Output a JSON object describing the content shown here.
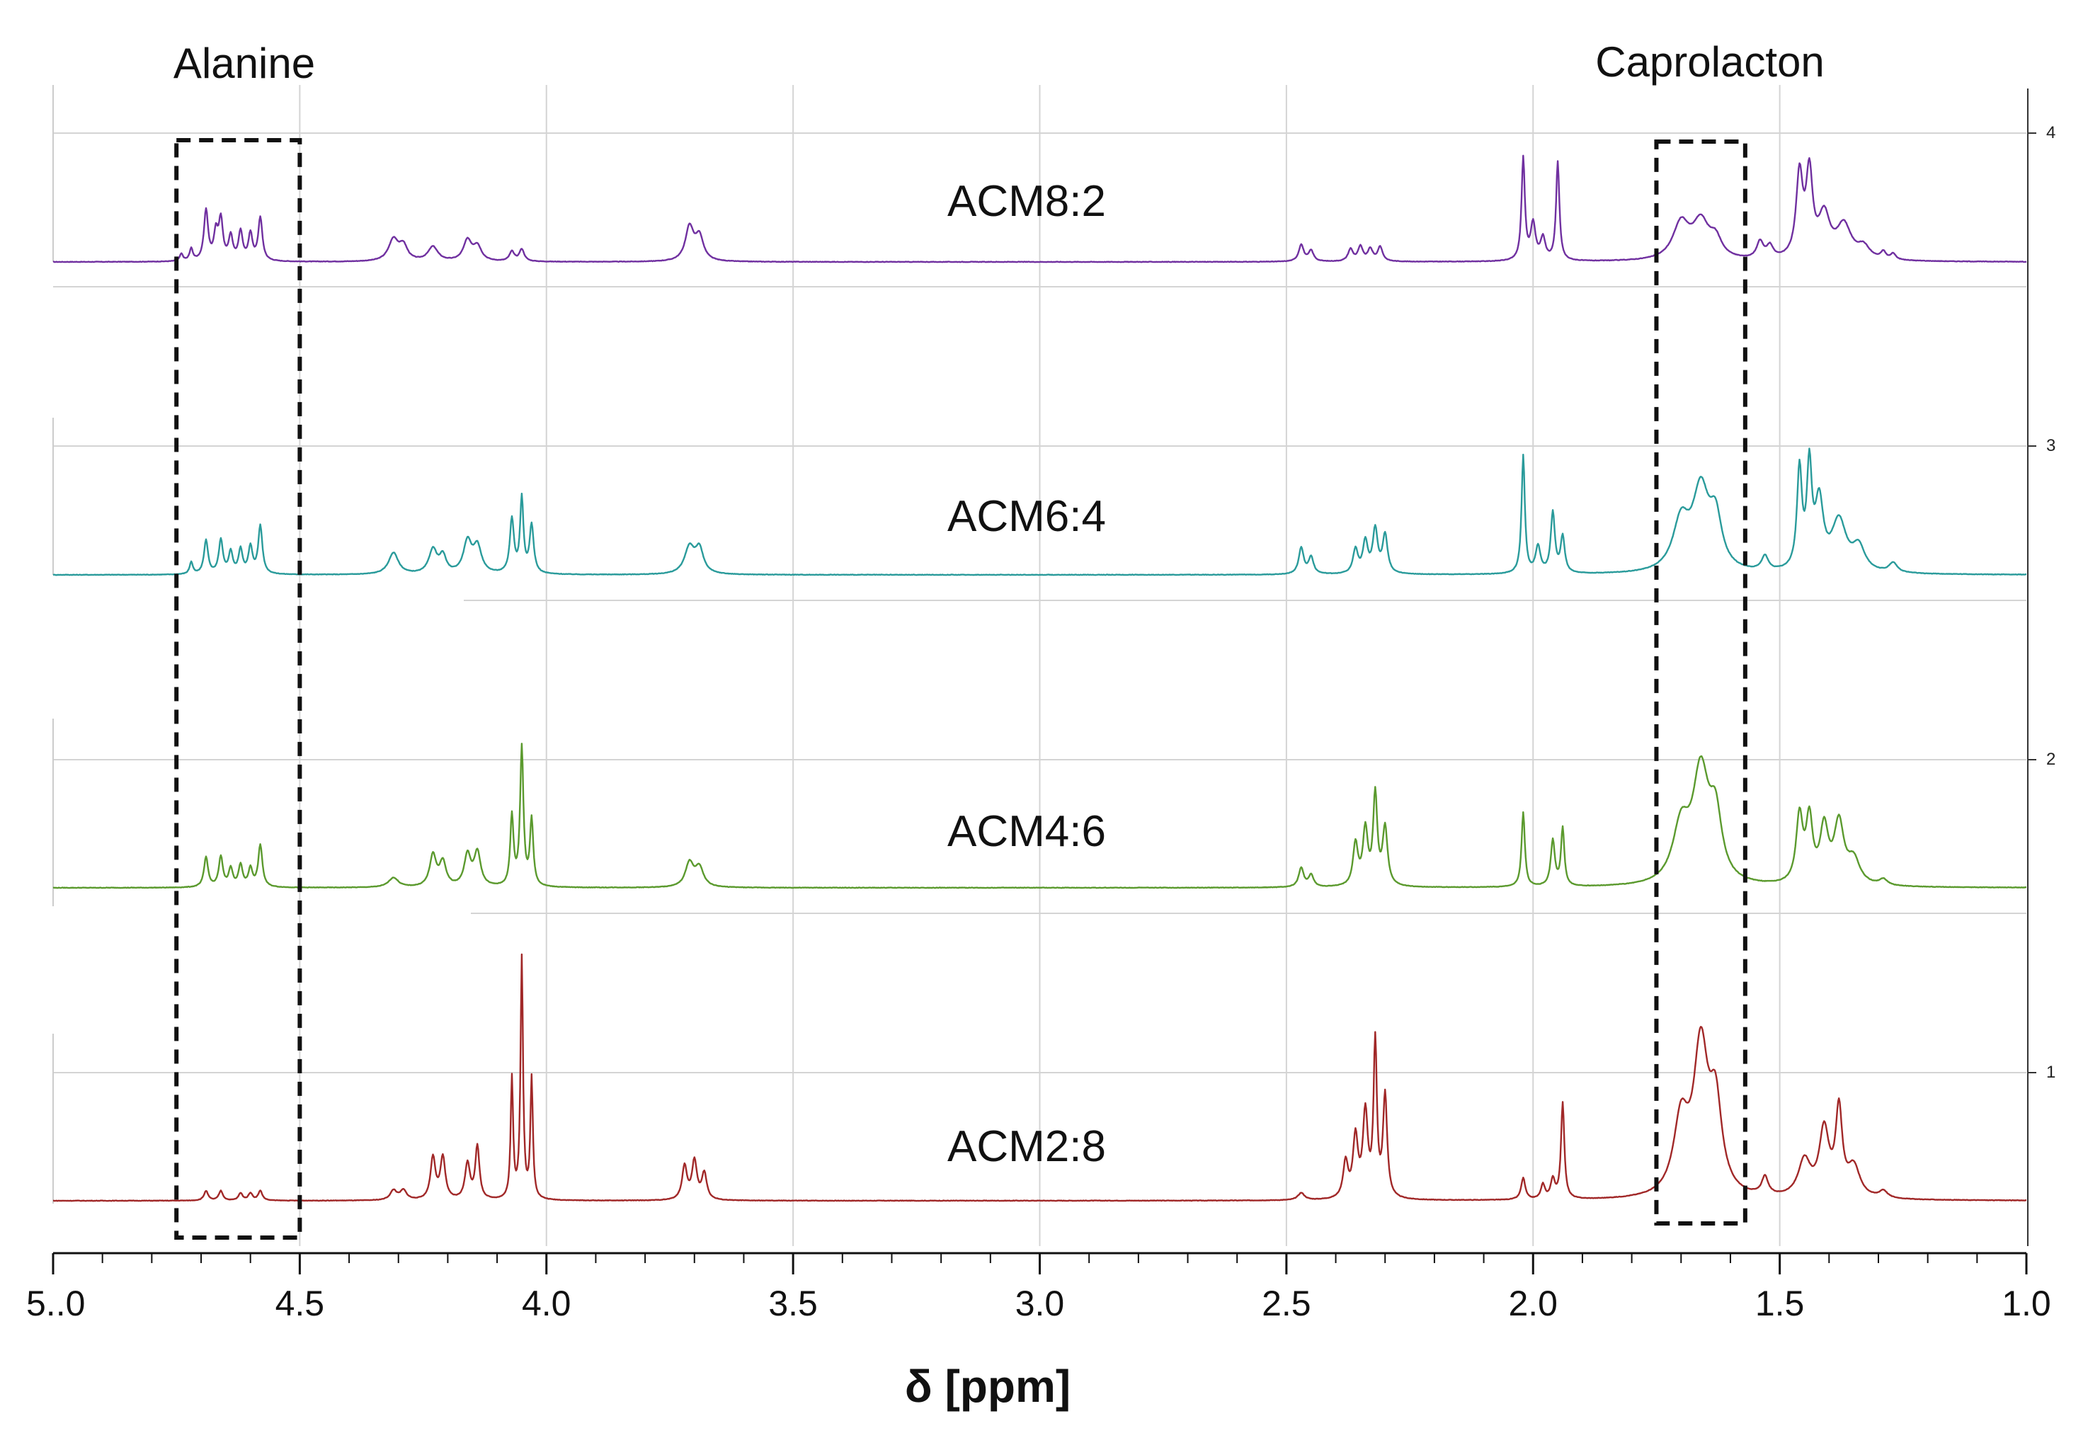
{
  "chart_data": {
    "type": "line",
    "title": "",
    "xlabel": "δ [ppm]",
    "ylabel": "",
    "x_reversed": true,
    "xlim": [
      5.0,
      1.0
    ],
    "x_ticks": [
      {
        "value": 5.0,
        "label": "5..0"
      },
      {
        "value": 4.5,
        "label": "4.5"
      },
      {
        "value": 4.0,
        "label": "4.0"
      },
      {
        "value": 3.5,
        "label": "3.5"
      },
      {
        "value": 3.0,
        "label": "3.0"
      },
      {
        "value": 2.5,
        "label": "2.5"
      },
      {
        "value": 2.0,
        "label": "2.0"
      },
      {
        "value": 1.5,
        "label": "1.5"
      },
      {
        "value": 1.0,
        "label": "1.0"
      }
    ],
    "stack_ticks": [
      {
        "value": 4,
        "label": "4"
      },
      {
        "value": 3,
        "label": "3"
      },
      {
        "value": 2,
        "label": "2"
      },
      {
        "value": 1,
        "label": "1"
      }
    ],
    "grid": true,
    "annotations": [
      {
        "label": "Alanine",
        "x_from": 4.75,
        "x_to": 4.5
      },
      {
        "label": "Caprolacton",
        "x_from": 1.75,
        "x_to": 1.57
      }
    ],
    "series": [
      {
        "name": "ACM8:2",
        "color": "#7030a0",
        "stack": 4,
        "peaks": [
          [
            4.74,
            0.06,
            0.004
          ],
          [
            4.72,
            0.1,
            0.004
          ],
          [
            4.69,
            0.42,
            0.005
          ],
          [
            4.67,
            0.22,
            0.005
          ],
          [
            4.66,
            0.33,
            0.005
          ],
          [
            4.64,
            0.2,
            0.005
          ],
          [
            4.62,
            0.24,
            0.005
          ],
          [
            4.6,
            0.22,
            0.005
          ],
          [
            4.58,
            0.36,
            0.005
          ],
          [
            4.31,
            0.18,
            0.012
          ],
          [
            4.29,
            0.12,
            0.01
          ],
          [
            4.23,
            0.12,
            0.012
          ],
          [
            4.16,
            0.17,
            0.01
          ],
          [
            4.14,
            0.12,
            0.01
          ],
          [
            4.07,
            0.08,
            0.006
          ],
          [
            4.05,
            0.1,
            0.006
          ],
          [
            3.71,
            0.28,
            0.01
          ],
          [
            3.69,
            0.2,
            0.01
          ],
          [
            2.47,
            0.14,
            0.006
          ],
          [
            2.45,
            0.09,
            0.006
          ],
          [
            2.37,
            0.1,
            0.006
          ],
          [
            2.35,
            0.12,
            0.006
          ],
          [
            2.33,
            0.1,
            0.006
          ],
          [
            2.31,
            0.12,
            0.006
          ],
          [
            2.02,
            0.85,
            0.004
          ],
          [
            2.0,
            0.3,
            0.006
          ],
          [
            1.98,
            0.18,
            0.006
          ],
          [
            1.95,
            0.82,
            0.004
          ],
          [
            1.7,
            0.3,
            0.02
          ],
          [
            1.66,
            0.3,
            0.02
          ],
          [
            1.63,
            0.15,
            0.015
          ],
          [
            1.54,
            0.14,
            0.008
          ],
          [
            1.52,
            0.1,
            0.008
          ],
          [
            1.46,
            0.68,
            0.008
          ],
          [
            1.44,
            0.68,
            0.008
          ],
          [
            1.41,
            0.35,
            0.014
          ],
          [
            1.37,
            0.28,
            0.018
          ],
          [
            1.33,
            0.1,
            0.015
          ],
          [
            1.29,
            0.06,
            0.006
          ],
          [
            1.27,
            0.05,
            0.006
          ]
        ]
      },
      {
        "name": "ACM6:4",
        "color": "#2a9b9b",
        "stack": 3,
        "peaks": [
          [
            4.72,
            0.1,
            0.004
          ],
          [
            4.69,
            0.28,
            0.005
          ],
          [
            4.66,
            0.28,
            0.005
          ],
          [
            4.64,
            0.18,
            0.005
          ],
          [
            4.62,
            0.2,
            0.005
          ],
          [
            4.6,
            0.22,
            0.005
          ],
          [
            4.58,
            0.4,
            0.005
          ],
          [
            4.31,
            0.18,
            0.012
          ],
          [
            4.23,
            0.2,
            0.01
          ],
          [
            4.21,
            0.14,
            0.008
          ],
          [
            4.16,
            0.26,
            0.01
          ],
          [
            4.14,
            0.22,
            0.01
          ],
          [
            4.07,
            0.45,
            0.005
          ],
          [
            4.05,
            0.62,
            0.004
          ],
          [
            4.03,
            0.4,
            0.005
          ],
          [
            3.71,
            0.22,
            0.012
          ],
          [
            3.69,
            0.2,
            0.01
          ],
          [
            2.47,
            0.22,
            0.006
          ],
          [
            2.45,
            0.14,
            0.006
          ],
          [
            2.36,
            0.2,
            0.006
          ],
          [
            2.34,
            0.26,
            0.006
          ],
          [
            2.32,
            0.36,
            0.006
          ],
          [
            2.3,
            0.32,
            0.006
          ],
          [
            2.02,
            0.98,
            0.004
          ],
          [
            1.99,
            0.22,
            0.006
          ],
          [
            1.96,
            0.5,
            0.005
          ],
          [
            1.94,
            0.3,
            0.005
          ],
          [
            1.7,
            0.4,
            0.02
          ],
          [
            1.66,
            0.65,
            0.02
          ],
          [
            1.63,
            0.4,
            0.015
          ],
          [
            1.53,
            0.12,
            0.008
          ],
          [
            1.46,
            0.82,
            0.006
          ],
          [
            1.44,
            0.82,
            0.006
          ],
          [
            1.42,
            0.55,
            0.01
          ],
          [
            1.38,
            0.42,
            0.018
          ],
          [
            1.34,
            0.2,
            0.015
          ],
          [
            1.27,
            0.08,
            0.01
          ]
        ]
      },
      {
        "name": "ACM4:6",
        "color": "#5b9a2e",
        "stack": 2,
        "peaks": [
          [
            4.69,
            0.25,
            0.005
          ],
          [
            4.66,
            0.25,
            0.005
          ],
          [
            4.64,
            0.15,
            0.005
          ],
          [
            4.62,
            0.18,
            0.005
          ],
          [
            4.6,
            0.15,
            0.005
          ],
          [
            4.58,
            0.35,
            0.005
          ],
          [
            4.31,
            0.08,
            0.012
          ],
          [
            4.23,
            0.26,
            0.008
          ],
          [
            4.21,
            0.2,
            0.008
          ],
          [
            4.16,
            0.26,
            0.008
          ],
          [
            4.14,
            0.28,
            0.008
          ],
          [
            4.07,
            0.58,
            0.004
          ],
          [
            4.05,
            1.15,
            0.004
          ],
          [
            4.03,
            0.55,
            0.004
          ],
          [
            3.71,
            0.2,
            0.01
          ],
          [
            3.69,
            0.16,
            0.01
          ],
          [
            2.47,
            0.16,
            0.006
          ],
          [
            2.45,
            0.1,
            0.006
          ],
          [
            2.36,
            0.35,
            0.006
          ],
          [
            2.34,
            0.46,
            0.006
          ],
          [
            2.32,
            0.75,
            0.005
          ],
          [
            2.3,
            0.48,
            0.006
          ],
          [
            2.02,
            0.62,
            0.004
          ],
          [
            1.96,
            0.38,
            0.005
          ],
          [
            1.94,
            0.48,
            0.004
          ],
          [
            1.7,
            0.45,
            0.02
          ],
          [
            1.66,
            0.9,
            0.02
          ],
          [
            1.63,
            0.5,
            0.015
          ],
          [
            1.46,
            0.55,
            0.008
          ],
          [
            1.44,
            0.52,
            0.008
          ],
          [
            1.41,
            0.45,
            0.01
          ],
          [
            1.38,
            0.5,
            0.012
          ],
          [
            1.35,
            0.2,
            0.015
          ],
          [
            1.29,
            0.05,
            0.01
          ]
        ]
      },
      {
        "name": "ACM2:8",
        "color": "#a12828",
        "stack": 1,
        "peaks": [
          [
            4.69,
            0.08,
            0.005
          ],
          [
            4.66,
            0.08,
            0.005
          ],
          [
            4.62,
            0.06,
            0.005
          ],
          [
            4.6,
            0.06,
            0.005
          ],
          [
            4.58,
            0.08,
            0.005
          ],
          [
            4.31,
            0.08,
            0.008
          ],
          [
            4.29,
            0.08,
            0.008
          ],
          [
            4.23,
            0.35,
            0.006
          ],
          [
            4.21,
            0.35,
            0.006
          ],
          [
            4.16,
            0.3,
            0.006
          ],
          [
            4.14,
            0.44,
            0.005
          ],
          [
            4.07,
            1.0,
            0.003
          ],
          [
            4.05,
            2.0,
            0.003
          ],
          [
            4.03,
            1.0,
            0.003
          ],
          [
            3.72,
            0.28,
            0.006
          ],
          [
            3.7,
            0.32,
            0.006
          ],
          [
            3.68,
            0.22,
            0.006
          ],
          [
            2.47,
            0.06,
            0.008
          ],
          [
            2.38,
            0.3,
            0.006
          ],
          [
            2.36,
            0.5,
            0.006
          ],
          [
            2.34,
            0.7,
            0.006
          ],
          [
            2.32,
            1.28,
            0.004
          ],
          [
            2.3,
            0.85,
            0.005
          ],
          [
            2.02,
            0.18,
            0.005
          ],
          [
            1.98,
            0.12,
            0.005
          ],
          [
            1.96,
            0.16,
            0.005
          ],
          [
            1.94,
            0.8,
            0.004
          ],
          [
            1.7,
            0.6,
            0.018
          ],
          [
            1.66,
            1.2,
            0.018
          ],
          [
            1.63,
            0.7,
            0.015
          ],
          [
            1.53,
            0.15,
            0.008
          ],
          [
            1.45,
            0.3,
            0.015
          ],
          [
            1.41,
            0.55,
            0.012
          ],
          [
            1.38,
            0.7,
            0.008
          ],
          [
            1.35,
            0.25,
            0.015
          ],
          [
            1.29,
            0.06,
            0.01
          ]
        ]
      }
    ]
  }
}
